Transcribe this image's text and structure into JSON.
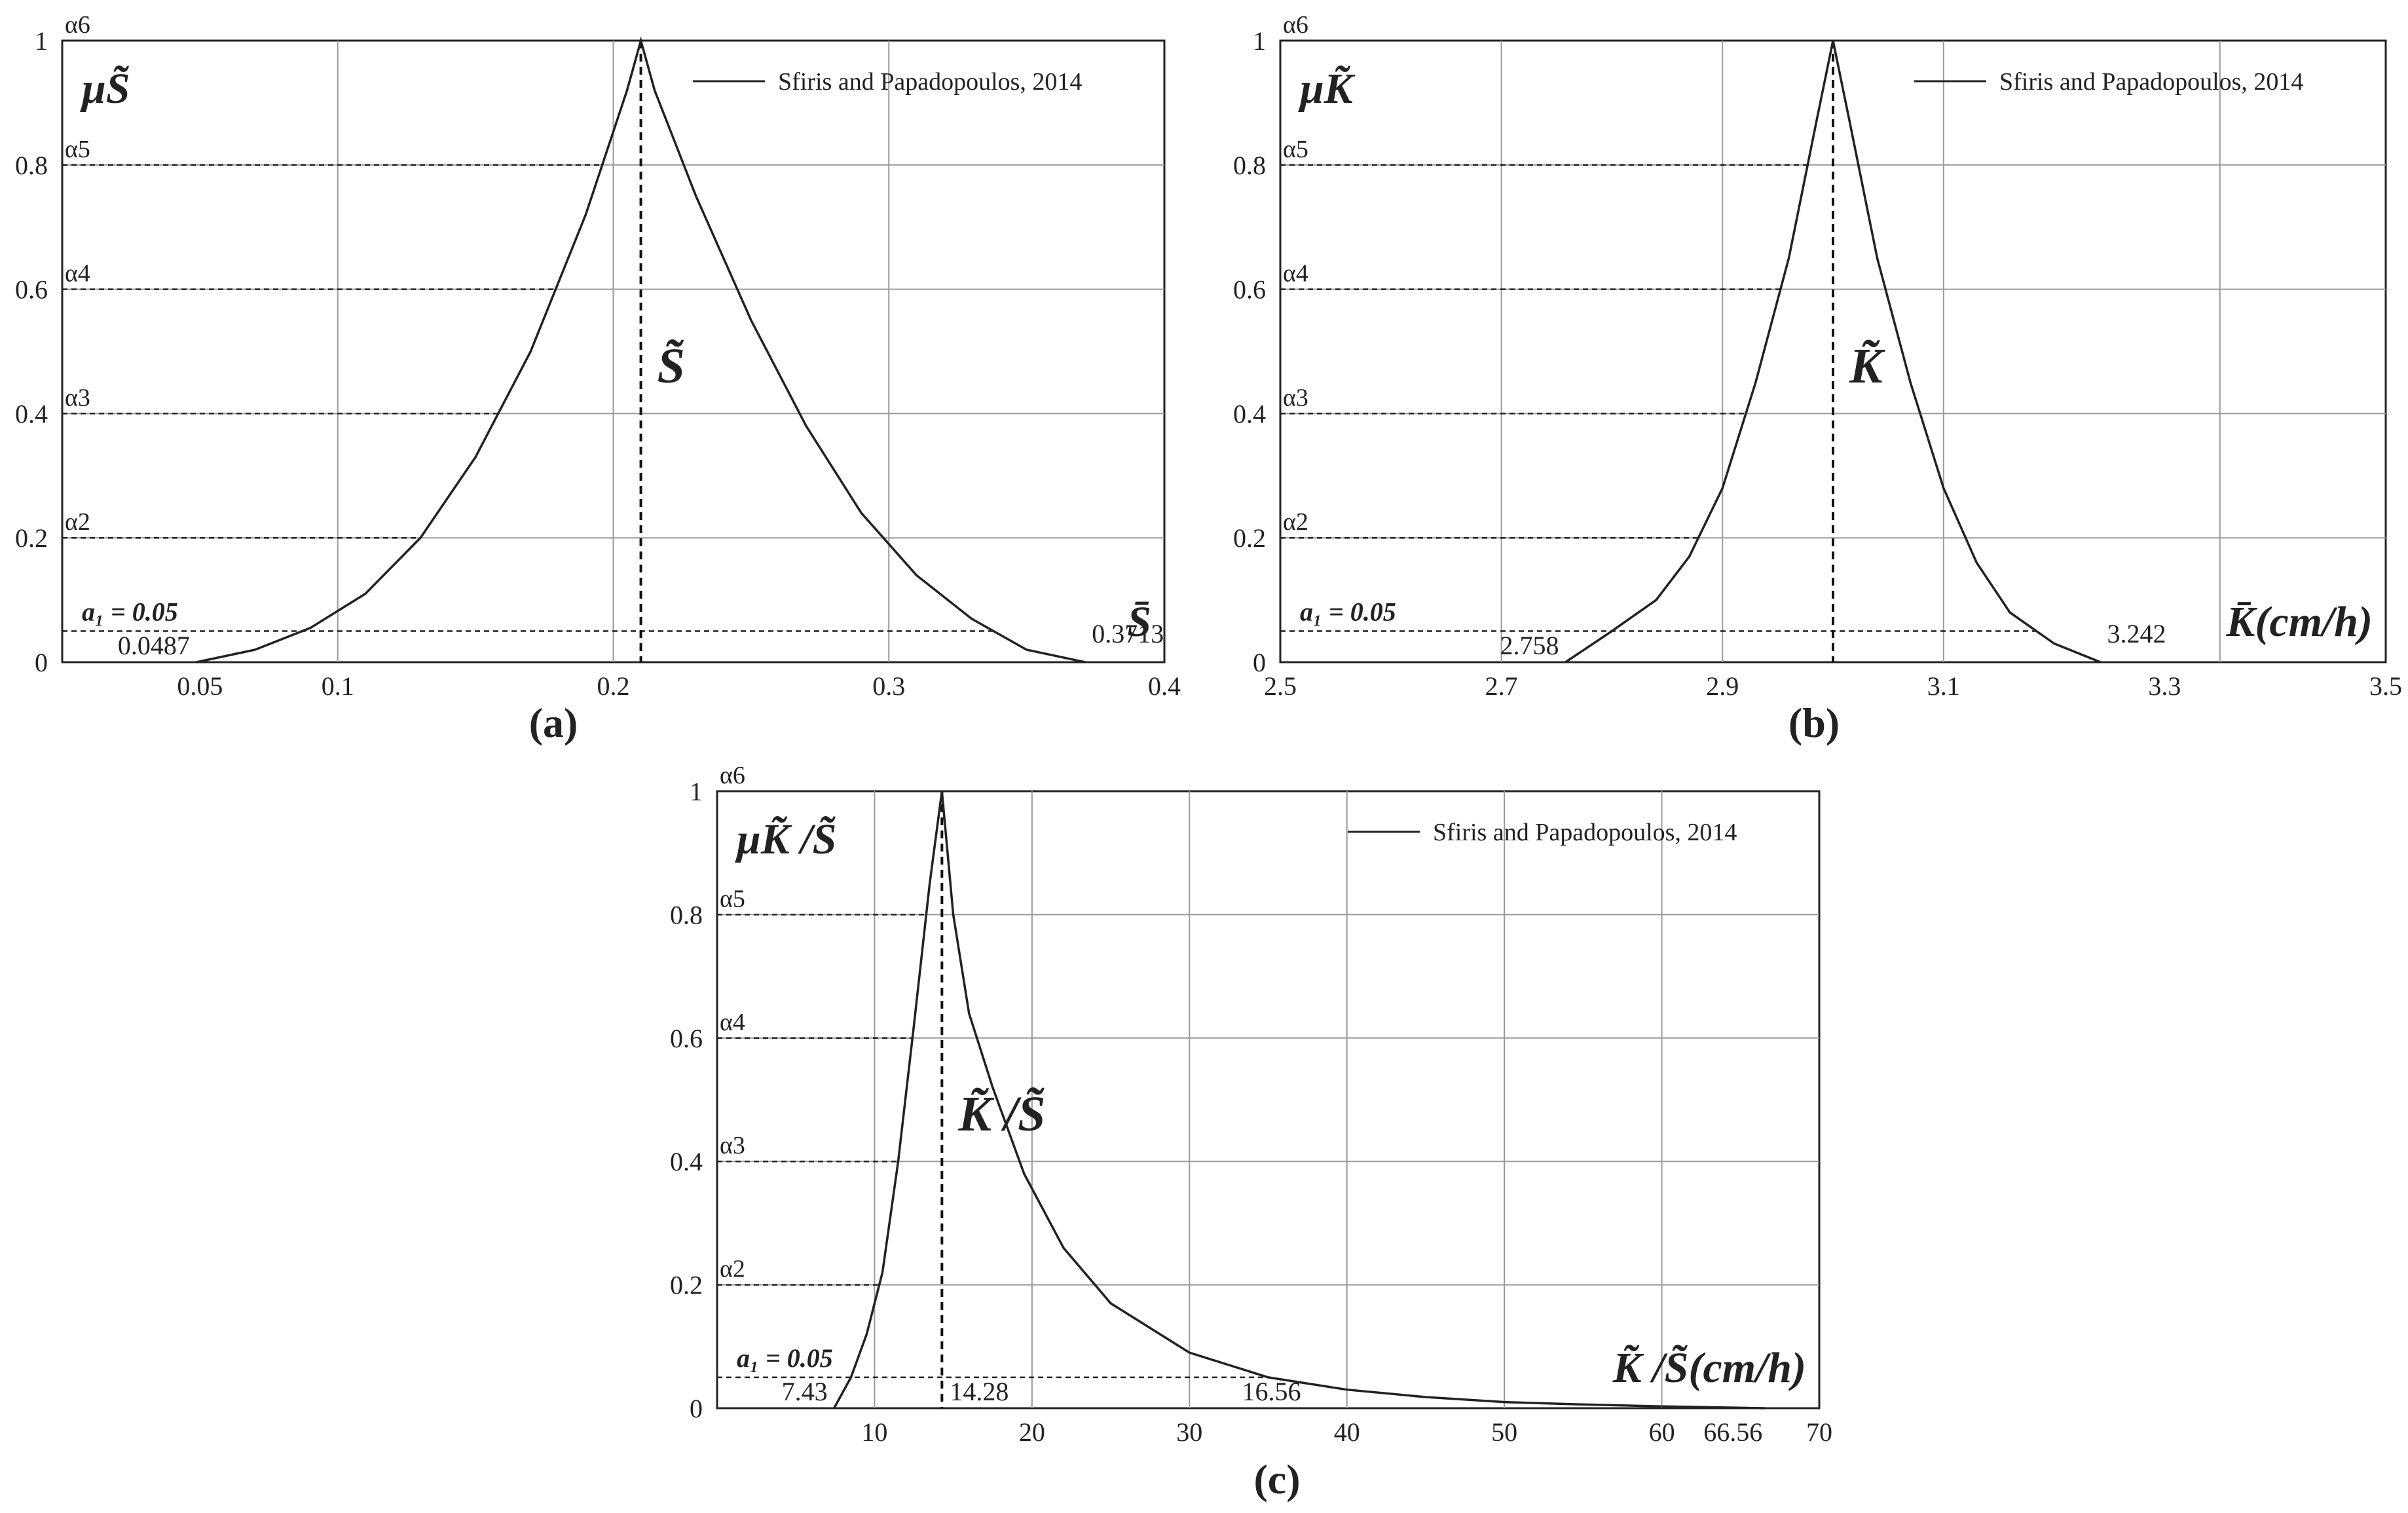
{
  "figure": {
    "panel_labels": [
      "(a)",
      "(b)",
      "(c)"
    ]
  },
  "chart_data": [
    {
      "type": "line",
      "panel": "(a)",
      "legend_label": "Sfiris and Papadopoulos, 2014",
      "legend_placement": "top-right",
      "grid": true,
      "xlim": [
        0.0,
        0.4
      ],
      "ylim": [
        0,
        1
      ],
      "x_ticks": [
        "0.05",
        "0.1",
        "0.2",
        "0.3",
        "0.4"
      ],
      "y_ticks": [
        "0",
        "0.2",
        "0.4",
        "0.6",
        "0.8",
        "1"
      ],
      "alpha_levels": [
        "α6",
        "α5",
        "α4",
        "α3",
        "α2"
      ],
      "a1_label": "a₁ = 0.05",
      "y_title": "μS̃",
      "x_title": "S̄",
      "peak_label": "S̃",
      "peak_x": 0.21,
      "left_value_label": "0.0487",
      "right_value_label": "0.3713",
      "series": [
        {
          "x": [
            0.0487,
            0.07,
            0.09,
            0.11,
            0.13,
            0.15,
            0.17,
            0.19,
            0.205,
            0.21,
            0.215,
            0.23,
            0.25,
            0.27,
            0.29,
            0.31,
            0.33,
            0.35,
            0.3713
          ],
          "y": [
            0.0,
            0.02,
            0.055,
            0.11,
            0.2,
            0.33,
            0.5,
            0.72,
            0.92,
            1.0,
            0.92,
            0.75,
            0.55,
            0.38,
            0.24,
            0.14,
            0.07,
            0.02,
            0.0
          ]
        }
      ]
    },
    {
      "type": "line",
      "panel": "(b)",
      "legend_label": "Sfiris and Papadopoulos, 2014",
      "legend_placement": "top-right",
      "grid": true,
      "xlim": [
        2.5,
        3.5
      ],
      "ylim": [
        0,
        1
      ],
      "x_ticks": [
        "2.5",
        "2.7",
        "2.9",
        "3.1",
        "3.3",
        "3.5"
      ],
      "y_ticks": [
        "0",
        "0.2",
        "0.4",
        "0.6",
        "0.8",
        "1"
      ],
      "alpha_levels": [
        "α6",
        "α5",
        "α4",
        "α3",
        "α2"
      ],
      "a1_label": "a₁ = 0.05",
      "y_title": "μK̃",
      "x_title": "K̄(cm/h)",
      "peak_label": "K̃",
      "peak_x": 3.0,
      "left_value_label": "2.758",
      "right_value_label": "3.242",
      "series": [
        {
          "x": [
            2.758,
            2.8,
            2.84,
            2.87,
            2.9,
            2.93,
            2.96,
            2.985,
            3.0,
            3.015,
            3.04,
            3.07,
            3.1,
            3.13,
            3.16,
            3.2,
            3.242
          ],
          "y": [
            0.0,
            0.05,
            0.1,
            0.17,
            0.28,
            0.45,
            0.65,
            0.87,
            1.0,
            0.87,
            0.65,
            0.45,
            0.28,
            0.16,
            0.08,
            0.03,
            0.0
          ]
        }
      ]
    },
    {
      "type": "line",
      "panel": "(c)",
      "legend_label": "Sfiris and Papadopoulos, 2014",
      "legend_placement": "top-right",
      "grid": true,
      "xlim": [
        0,
        70
      ],
      "ylim": [
        0,
        1
      ],
      "x_ticks": [
        "10",
        "20",
        "30",
        "40",
        "50",
        "60",
        "70"
      ],
      "y_ticks": [
        "0",
        "0.2",
        "0.4",
        "0.6",
        "0.8",
        "1"
      ],
      "alpha_levels": [
        "α6",
        "α5",
        "α4",
        "α3",
        "α2"
      ],
      "a1_label": "a₁ = 0.05",
      "y_title": "μK̃ /S̃",
      "x_title": "K̃ /S̃(cm/h)",
      "peak_label": "K̃ /S̃",
      "peak_x": 14.28,
      "left_value_label": "7.43",
      "peak_value_label": "14.28",
      "right_value_label": "16.56",
      "end_value_label": "66.56",
      "series": [
        {
          "x": [
            7.43,
            8.5,
            9.5,
            10.5,
            11.5,
            12.5,
            13.5,
            14.28,
            15.0,
            16.0,
            17.5,
            19.5,
            22.0,
            25.0,
            30.0,
            35.0,
            40.0,
            45.0,
            50.0,
            55.0,
            60.0,
            66.56
          ],
          "y": [
            0.0,
            0.05,
            0.12,
            0.22,
            0.4,
            0.62,
            0.85,
            1.0,
            0.8,
            0.64,
            0.52,
            0.38,
            0.26,
            0.17,
            0.09,
            0.05,
            0.03,
            0.018,
            0.01,
            0.006,
            0.003,
            0.0
          ]
        }
      ]
    }
  ]
}
